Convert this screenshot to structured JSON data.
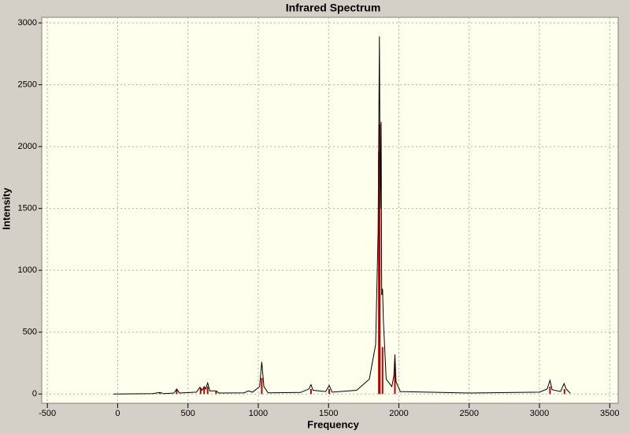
{
  "chart_data": {
    "type": "line",
    "title": "Infrared Spectrum",
    "x_label": "Frequency",
    "y_label": "Intensity",
    "xlim": [
      -540,
      3560
    ],
    "ylim": [
      -75,
      3045
    ],
    "xticks": [
      -500,
      0,
      500,
      1000,
      1500,
      2000,
      2500,
      3000,
      3500
    ],
    "yticks": [
      0,
      500,
      1000,
      1500,
      2000,
      2500,
      3000
    ],
    "grid": true,
    "series": [
      {
        "color": "#000000",
        "x": [
          -30,
          250,
          300,
          330,
          400,
          420,
          440,
          560,
          585,
          600,
          615,
          625,
          640,
          655,
          700,
          720,
          900,
          930,
          960,
          1010,
          1025,
          1040,
          1070,
          1300,
          1360,
          1375,
          1390,
          1480,
          1505,
          1525,
          1700,
          1790,
          1835,
          1852,
          1862,
          1868,
          1874,
          1878,
          1884,
          1890,
          1910,
          1950,
          1965,
          1972,
          1980,
          2010,
          2500,
          3000,
          3055,
          3075,
          3090,
          3150,
          3175,
          3190,
          3220
        ],
        "values": [
          0,
          3,
          12,
          3,
          8,
          40,
          8,
          15,
          55,
          30,
          60,
          40,
          90,
          25,
          25,
          8,
          10,
          25,
          15,
          60,
          260,
          60,
          10,
          12,
          40,
          75,
          30,
          20,
          70,
          15,
          30,
          120,
          400,
          1300,
          2890,
          1500,
          2200,
          800,
          850,
          600,
          120,
          60,
          150,
          320,
          100,
          20,
          8,
          15,
          40,
          110,
          35,
          20,
          85,
          40,
          5
        ]
      }
    ],
    "sticks": {
      "color": "#c00000",
      "x": [
        300,
        420,
        590,
        615,
        640,
        700,
        1025,
        1375,
        1505,
        1858,
        1864,
        1884,
        1972,
        3075,
        3178
      ],
      "values": [
        10,
        35,
        50,
        50,
        60,
        20,
        130,
        40,
        40,
        1960,
        2180,
        380,
        250,
        60,
        40
      ]
    }
  }
}
